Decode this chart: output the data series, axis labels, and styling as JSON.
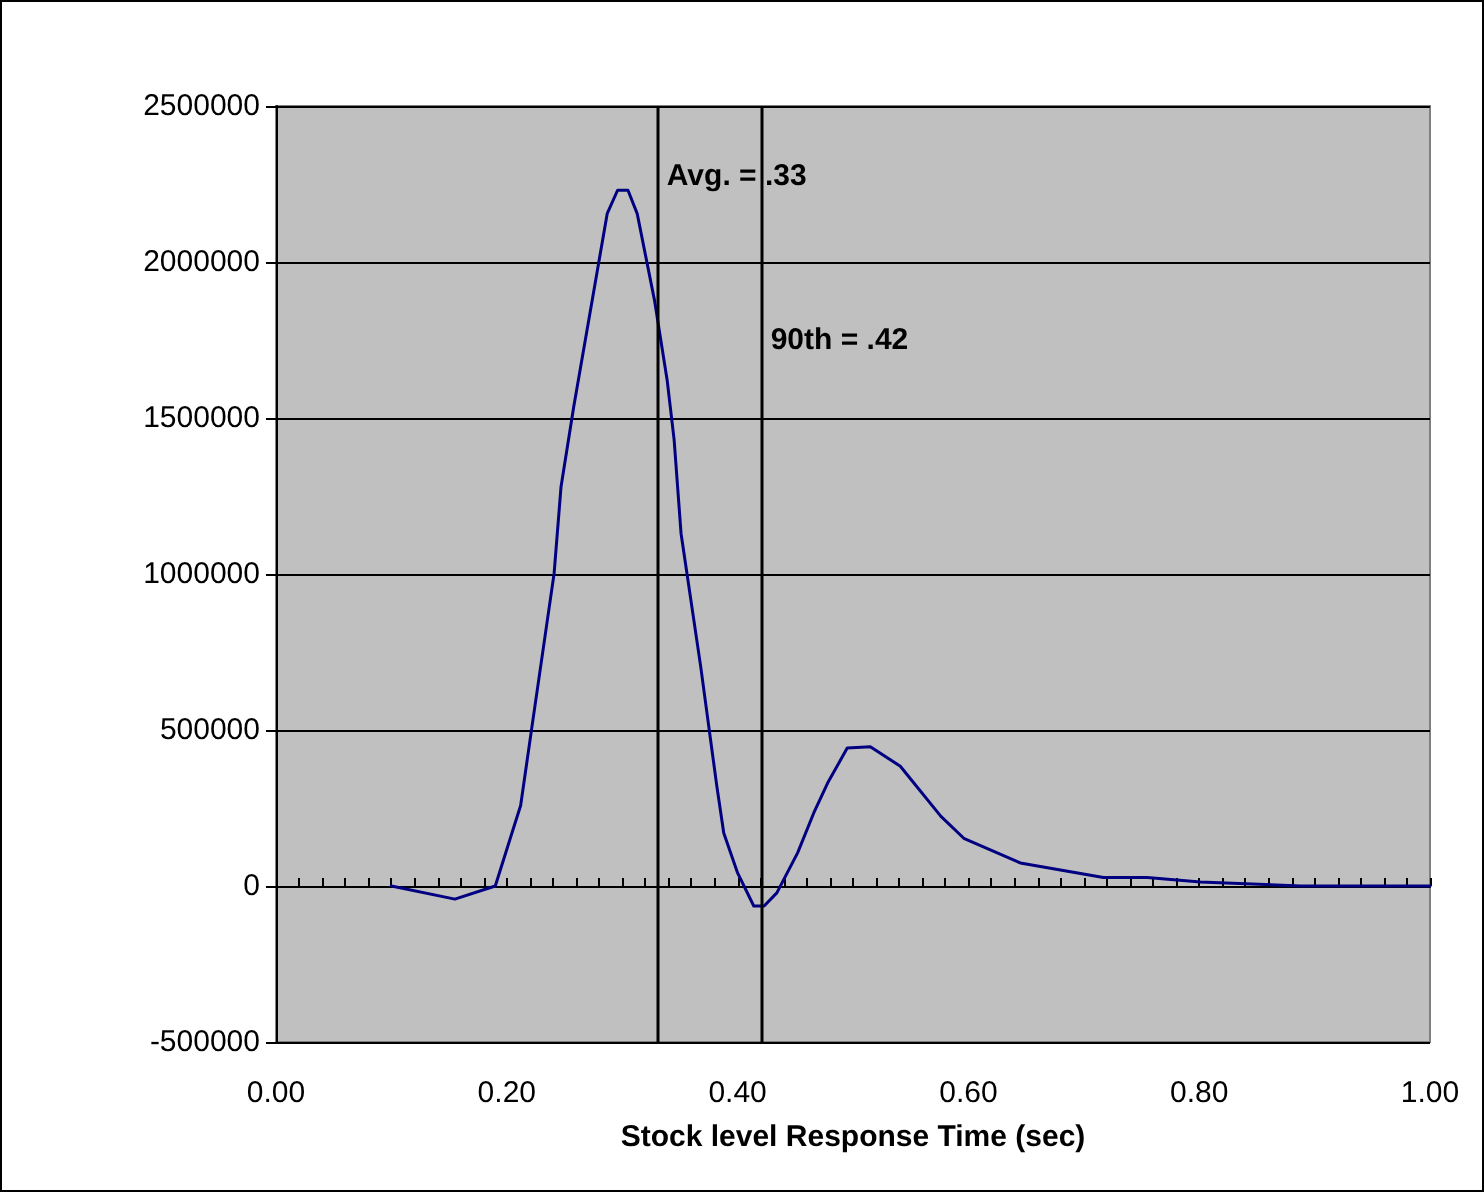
{
  "chart_data": {
    "type": "line",
    "xlabel": "Stock level Response Time (sec)",
    "x": [
      0.1,
      0.155,
      0.19,
      0.212,
      0.221,
      0.241,
      0.247,
      0.258,
      0.276,
      0.287,
      0.296,
      0.305,
      0.313,
      0.328,
      0.339,
      0.345,
      0.351,
      0.368,
      0.382,
      0.388,
      0.4,
      0.414,
      0.423,
      0.434,
      0.452,
      0.466,
      0.478,
      0.495,
      0.515,
      0.541,
      0.576,
      0.596,
      0.645,
      0.717,
      0.755,
      0.801,
      0.888,
      1.0
    ],
    "series": [
      {
        "color": "#000080",
        "values": [
          0,
          -42000,
          0,
          258000,
          490000,
          1002000,
          1280000,
          1536000,
          1920000,
          2155000,
          2230000,
          2230000,
          2155000,
          1877000,
          1620000,
          1430000,
          1130000,
          704000,
          320000,
          170000,
          42000,
          -64000,
          -64000,
          -22000,
          106000,
          234000,
          330000,
          442000,
          446000,
          384000,
          224000,
          153000,
          74000,
          27000,
          27000,
          13000,
          0,
          0
        ]
      }
    ],
    "xlim": [
      0,
      1
    ],
    "xticks": [
      {
        "value": 0,
        "label": "0.00"
      },
      {
        "value": 0.02,
        "label": null
      },
      {
        "value": 0.04,
        "label": null
      },
      {
        "value": 0.06,
        "label": null
      },
      {
        "value": 0.08,
        "label": null
      },
      {
        "value": 0.1,
        "label": null
      },
      {
        "value": 0.12,
        "label": null
      },
      {
        "value": 0.14,
        "label": null
      },
      {
        "value": 0.16,
        "label": null
      },
      {
        "value": 0.18,
        "label": null
      },
      {
        "value": 0.2,
        "label": "0.20"
      },
      {
        "value": 0.22,
        "label": null
      },
      {
        "value": 0.24,
        "label": null
      },
      {
        "value": 0.26,
        "label": null
      },
      {
        "value": 0.28,
        "label": null
      },
      {
        "value": 0.3,
        "label": null
      },
      {
        "value": 0.32,
        "label": null
      },
      {
        "value": 0.34,
        "label": null
      },
      {
        "value": 0.36,
        "label": null
      },
      {
        "value": 0.38,
        "label": null
      },
      {
        "value": 0.4,
        "label": "0.40"
      },
      {
        "value": 0.42,
        "label": null
      },
      {
        "value": 0.44,
        "label": null
      },
      {
        "value": 0.46,
        "label": null
      },
      {
        "value": 0.48,
        "label": null
      },
      {
        "value": 0.5,
        "label": null
      },
      {
        "value": 0.52,
        "label": null
      },
      {
        "value": 0.54,
        "label": null
      },
      {
        "value": 0.56,
        "label": null
      },
      {
        "value": 0.58,
        "label": null
      },
      {
        "value": 0.6,
        "label": "0.60"
      },
      {
        "value": 0.62,
        "label": null
      },
      {
        "value": 0.64,
        "label": null
      },
      {
        "value": 0.66,
        "label": null
      },
      {
        "value": 0.68,
        "label": null
      },
      {
        "value": 0.7,
        "label": null
      },
      {
        "value": 0.72,
        "label": null
      },
      {
        "value": 0.74,
        "label": null
      },
      {
        "value": 0.76,
        "label": null
      },
      {
        "value": 0.78,
        "label": null
      },
      {
        "value": 0.8,
        "label": "0.80"
      },
      {
        "value": 0.82,
        "label": null
      },
      {
        "value": 0.84,
        "label": null
      },
      {
        "value": 0.86,
        "label": null
      },
      {
        "value": 0.88,
        "label": null
      },
      {
        "value": 0.9,
        "label": null
      },
      {
        "value": 0.92,
        "label": null
      },
      {
        "value": 0.94,
        "label": null
      },
      {
        "value": 0.96,
        "label": null
      },
      {
        "value": 0.98,
        "label": null
      },
      {
        "value": 1,
        "label": "1.00"
      }
    ],
    "ylim": [
      -500000,
      2500000
    ],
    "yticks": [
      -500000,
      0,
      500000,
      1000000,
      1500000,
      2000000,
      2500000
    ],
    "ref_lines": [
      {
        "axis": "x",
        "value": 0.33,
        "label": "Avg. = .33",
        "color": "#000000"
      },
      {
        "axis": "x",
        "value": 0.42,
        "label": "90th = .42",
        "color": "#000000"
      }
    ],
    "grid": "y",
    "marker": "none",
    "line_style": "solid"
  }
}
